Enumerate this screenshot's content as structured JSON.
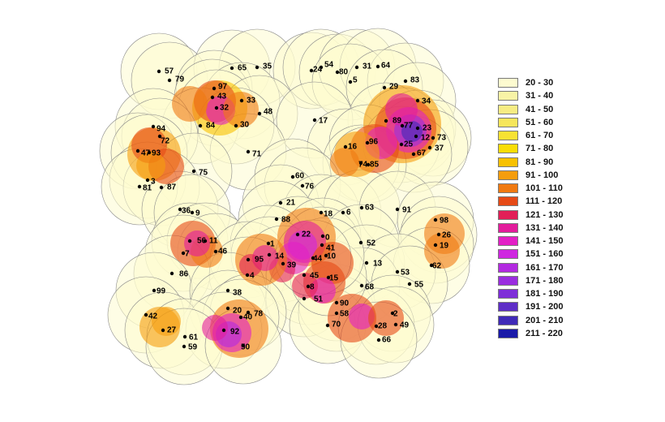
{
  "legend": {
    "items": [
      {
        "label": "20 - 30",
        "color": "#fdfbd0"
      },
      {
        "label": "31 - 40",
        "color": "#f8f3a6"
      },
      {
        "label": "41 - 50",
        "color": "#f6ec83"
      },
      {
        "label": "51 - 60",
        "color": "#f6e65b"
      },
      {
        "label": "61 - 70",
        "color": "#f8e233"
      },
      {
        "label": "71 - 80",
        "color": "#f9dd06"
      },
      {
        "label": "81 - 90",
        "color": "#f8c100"
      },
      {
        "label": "91 - 100",
        "color": "#f59d0d"
      },
      {
        "label": "101 - 110",
        "color": "#f07a12"
      },
      {
        "label": "111 - 120",
        "color": "#e64a16"
      },
      {
        "label": "121 - 130",
        "color": "#e21f57"
      },
      {
        "label": "131 - 140",
        "color": "#e31c9c"
      },
      {
        "label": "141 - 150",
        "color": "#e31fc6"
      },
      {
        "label": "151 - 160",
        "color": "#cf27e0"
      },
      {
        "label": "161 - 170",
        "color": "#b32ae1"
      },
      {
        "label": "171 - 180",
        "color": "#9a2ddf"
      },
      {
        "label": "181 - 190",
        "color": "#7e2ed8"
      },
      {
        "label": "191 - 200",
        "color": "#5e2ec7"
      },
      {
        "label": "201 - 210",
        "color": "#3f2ab7"
      },
      {
        "label": "211 - 220",
        "color": "#1a1aa8"
      }
    ]
  },
  "sites": [
    {
      "id": "57"
    },
    {
      "id": "79"
    },
    {
      "id": "65"
    },
    {
      "id": "35"
    },
    {
      "id": "24"
    },
    {
      "id": "54"
    },
    {
      "id": "80"
    },
    {
      "id": "31"
    },
    {
      "id": "64"
    },
    {
      "id": "5"
    },
    {
      "id": "83"
    },
    {
      "id": "29"
    },
    {
      "id": "97"
    },
    {
      "id": "43"
    },
    {
      "id": "33"
    },
    {
      "id": "32"
    },
    {
      "id": "48"
    },
    {
      "id": "34"
    },
    {
      "id": "89"
    },
    {
      "id": "84"
    },
    {
      "id": "30"
    },
    {
      "id": "17"
    },
    {
      "id": "77"
    },
    {
      "id": "23"
    },
    {
      "id": "12"
    },
    {
      "id": "73"
    },
    {
      "id": "94"
    },
    {
      "id": "72"
    },
    {
      "id": "71"
    },
    {
      "id": "16"
    },
    {
      "id": "96"
    },
    {
      "id": "25"
    },
    {
      "id": "37"
    },
    {
      "id": "67"
    },
    {
      "id": "47"
    },
    {
      "id": "93"
    },
    {
      "id": "74"
    },
    {
      "id": "85"
    },
    {
      "id": "75"
    },
    {
      "id": "60"
    },
    {
      "id": "3"
    },
    {
      "id": "87"
    },
    {
      "id": "81"
    },
    {
      "id": "76"
    },
    {
      "id": "21"
    },
    {
      "id": "18"
    },
    {
      "id": "6"
    },
    {
      "id": "63"
    },
    {
      "id": "91"
    },
    {
      "id": "36"
    },
    {
      "id": "9"
    },
    {
      "id": "88"
    },
    {
      "id": "98"
    },
    {
      "id": "26"
    },
    {
      "id": "19"
    },
    {
      "id": "56"
    },
    {
      "id": "11"
    },
    {
      "id": "22"
    },
    {
      "id": "0"
    },
    {
      "id": "41"
    },
    {
      "id": "52"
    },
    {
      "id": "46"
    },
    {
      "id": "1"
    },
    {
      "id": "7"
    },
    {
      "id": "95"
    },
    {
      "id": "14"
    },
    {
      "id": "13"
    },
    {
      "id": "62"
    },
    {
      "id": "39"
    },
    {
      "id": "86"
    },
    {
      "id": "4"
    },
    {
      "id": "45"
    },
    {
      "id": "53"
    },
    {
      "id": "68"
    },
    {
      "id": "55"
    },
    {
      "id": "99"
    },
    {
      "id": "38"
    },
    {
      "id": "8"
    },
    {
      "id": "51"
    },
    {
      "id": "90"
    },
    {
      "id": "42"
    },
    {
      "id": "20"
    },
    {
      "id": "78"
    },
    {
      "id": "40"
    },
    {
      "id": "58"
    },
    {
      "id": "2"
    },
    {
      "id": "27"
    },
    {
      "id": "92"
    },
    {
      "id": "70"
    },
    {
      "id": "28"
    },
    {
      "id": "49"
    },
    {
      "id": "61"
    },
    {
      "id": "59"
    },
    {
      "id": "50"
    },
    {
      "id": "66"
    },
    {
      "id": "15"
    },
    {
      "id": "10"
    },
    {
      "id": "44"
    }
  ]
}
